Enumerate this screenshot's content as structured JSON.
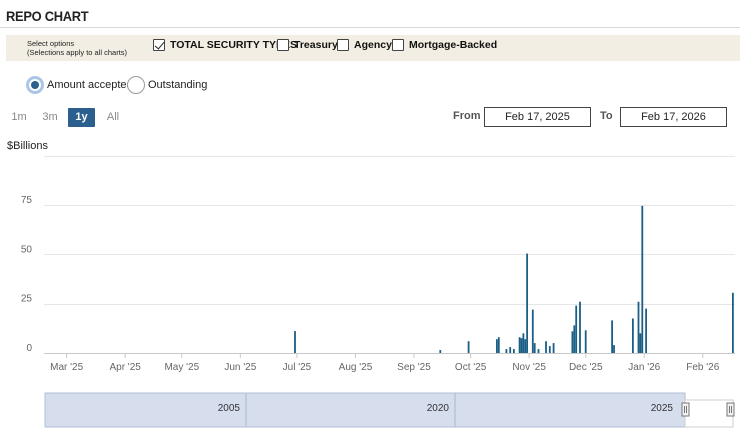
{
  "header": {
    "title": "REPO CHART"
  },
  "options": {
    "caption_line1": "Select options",
    "caption_line2": "(Selections apply to all charts)",
    "checkboxes": [
      {
        "label": "TOTAL SECURITY TYPES",
        "checked": true
      },
      {
        "label": "Treasury",
        "checked": false
      },
      {
        "label": "Agency",
        "checked": false
      },
      {
        "label": "Mortgage-Backed",
        "checked": false
      }
    ]
  },
  "metric_toggle": {
    "options": [
      {
        "label": "Amount accepted",
        "selected": true
      },
      {
        "label": "Outstanding",
        "selected": false
      }
    ]
  },
  "range_selector": {
    "buttons": [
      "1m",
      "3m",
      "1y",
      "All"
    ],
    "active": "1y",
    "from_label": "From",
    "from_value": "Feb 17, 2025",
    "to_label": "To",
    "to_value": "Feb 17, 2026"
  },
  "chart_data": {
    "type": "bar",
    "title": "",
    "ylabel": "$Billions",
    "xlabel": "",
    "ylim": [
      0,
      100
    ],
    "yticks": [
      0,
      25,
      50,
      75
    ],
    "grid": true,
    "xlim": [
      "2025-02-17",
      "2026-02-17"
    ],
    "xticks": [
      {
        "date": "2025-03-01",
        "label": "Mar '25"
      },
      {
        "date": "2025-04-01",
        "label": "Apr '25"
      },
      {
        "date": "2025-05-01",
        "label": "May '25"
      },
      {
        "date": "2025-06-01",
        "label": "Jun '25"
      },
      {
        "date": "2025-07-01",
        "label": "Jul '25"
      },
      {
        "date": "2025-08-01",
        "label": "Aug '25"
      },
      {
        "date": "2025-09-01",
        "label": "Sep '25"
      },
      {
        "date": "2025-10-01",
        "label": "Oct '25"
      },
      {
        "date": "2025-11-01",
        "label": "Nov '25"
      },
      {
        "date": "2025-12-01",
        "label": "Dec '25"
      },
      {
        "date": "2026-01-01",
        "label": "Jan '26"
      },
      {
        "date": "2026-02-01",
        "label": "Feb '26"
      }
    ],
    "color": "#1b5f86",
    "series": [
      {
        "points": [
          [
            "2025-06-30",
            11.1
          ],
          [
            "2025-09-15",
            1.5
          ],
          [
            "2025-09-30",
            6.0
          ],
          [
            "2025-10-15",
            7.0
          ],
          [
            "2025-10-16",
            8.0
          ],
          [
            "2025-10-20",
            2.0
          ],
          [
            "2025-10-22",
            3.0
          ],
          [
            "2025-10-24",
            2.0
          ],
          [
            "2025-10-27",
            8.0
          ],
          [
            "2025-10-28",
            7.5
          ],
          [
            "2025-10-29",
            10.0
          ],
          [
            "2025-10-30",
            7.0
          ],
          [
            "2025-10-31",
            50.35
          ],
          [
            "2025-11-03",
            22.0
          ],
          [
            "2025-11-04",
            5.0
          ],
          [
            "2025-11-06",
            2.0
          ],
          [
            "2025-11-10",
            6.0
          ],
          [
            "2025-11-12",
            3.5
          ],
          [
            "2025-11-14",
            5.0
          ],
          [
            "2025-11-24",
            11.0
          ],
          [
            "2025-11-25",
            14.0
          ],
          [
            "2025-11-26",
            24.0
          ],
          [
            "2025-11-28",
            26.0
          ],
          [
            "2025-12-01",
            11.5
          ],
          [
            "2025-12-15",
            16.5
          ],
          [
            "2025-12-16",
            4.0
          ],
          [
            "2025-12-26",
            17.5
          ],
          [
            "2025-12-29",
            26.0
          ],
          [
            "2025-12-30",
            10.0
          ],
          [
            "2025-12-31",
            74.6
          ],
          [
            "2026-01-02",
            22.5
          ],
          [
            "2026-02-17",
            30.5
          ]
        ]
      }
    ]
  },
  "navigator": {
    "labels": [
      "2005",
      "2020",
      "2025"
    ]
  }
}
